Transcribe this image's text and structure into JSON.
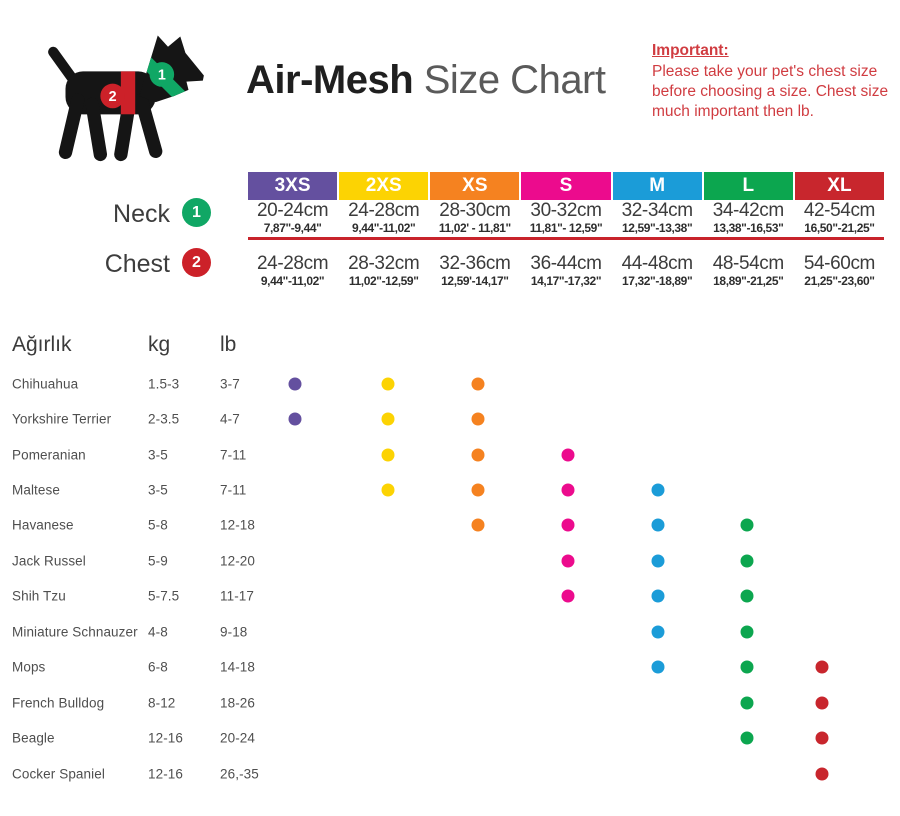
{
  "title": {
    "brand": "Air-Mesh",
    "rest": " Size Chart"
  },
  "important": {
    "heading": "Important:",
    "body": "Please take your pet's chest size before choosing a size. Chest size much important then lb."
  },
  "measure": {
    "neck_label": "Neck",
    "neck_marker": "1",
    "chest_label": "Chest",
    "chest_marker": "2"
  },
  "palette": {
    "3XS": "#64509f",
    "2XS": "#fcd303",
    "XS": "#f58220",
    "S": "#ec0b8d",
    "M": "#1b9cd8",
    "L": "#0ca64f",
    "XL": "#c8262d",
    "marker_green": "#10a765",
    "marker_red": "#cc2129",
    "accent_red_line": "#c8232b",
    "important_text": "#d03c41",
    "dog_black": "#151515"
  },
  "sizes": [
    {
      "label": "3XS",
      "neck_cm": "20-24cm",
      "neck_in": "7,87\"-9,44\"",
      "chest_cm": "24-28cm",
      "chest_in": "9,44\"-11,02\""
    },
    {
      "label": "2XS",
      "neck_cm": "24-28cm",
      "neck_in": "9,44\"-11,02\"",
      "chest_cm": "28-32cm",
      "chest_in": "11,02\"-12,59\""
    },
    {
      "label": "XS",
      "neck_cm": "28-30cm",
      "neck_in": "11,02' - 11,81\"",
      "chest_cm": "32-36cm",
      "chest_in": "12,59'-14,17\""
    },
    {
      "label": "S",
      "neck_cm": "30-32cm",
      "neck_in": "11,81\"- 12,59\"",
      "chest_cm": "36-44cm",
      "chest_in": "14,17\"-17,32\""
    },
    {
      "label": "M",
      "neck_cm": "32-34cm",
      "neck_in": "12,59\"-13,38\"",
      "chest_cm": "44-48cm",
      "chest_in": "17,32\"-18,89\""
    },
    {
      "label": "L",
      "neck_cm": "34-42cm",
      "neck_in": "13,38\"-16,53\"",
      "chest_cm": "48-54cm",
      "chest_in": "18,89\"-21,25\""
    },
    {
      "label": "XL",
      "neck_cm": "42-54cm",
      "neck_in": "16,50\"-21,25\"",
      "chest_cm": "54-60cm",
      "chest_in": "21,25\"-23,60\""
    }
  ],
  "breed_table": {
    "headers": {
      "breed": "Ağırlık",
      "kg": "kg",
      "lb": "lb"
    },
    "breeds": [
      {
        "name": "Chihuahua",
        "kg": "1.5-3",
        "lb": "3-7",
        "sizes": [
          "3XS",
          "2XS",
          "XS"
        ]
      },
      {
        "name": "Yorkshire Terrier",
        "kg": "2-3.5",
        "lb": "4-7",
        "sizes": [
          "3XS",
          "2XS",
          "XS"
        ]
      },
      {
        "name": "Pomeranian",
        "kg": "3-5",
        "lb": "7-11",
        "sizes": [
          "2XS",
          "XS",
          "S"
        ]
      },
      {
        "name": "Maltese",
        "kg": "3-5",
        "lb": "7-11",
        "sizes": [
          "2XS",
          "XS",
          "S",
          "M"
        ]
      },
      {
        "name": "Havanese",
        "kg": "5-8",
        "lb": "12-18",
        "sizes": [
          "XS",
          "S",
          "M",
          "L"
        ]
      },
      {
        "name": "Jack Russel",
        "kg": "5-9",
        "lb": "12-20",
        "sizes": [
          "S",
          "M",
          "L"
        ]
      },
      {
        "name": "Shih Tzu",
        "kg": "5-7.5",
        "lb": "11-17",
        "sizes": [
          "S",
          "M",
          "L"
        ]
      },
      {
        "name": "Miniature Schnauzer",
        "kg": "4-8",
        "lb": "9-18",
        "sizes": [
          "M",
          "L"
        ]
      },
      {
        "name": "Mops",
        "kg": "6-8",
        "lb": "14-18",
        "sizes": [
          "M",
          "L",
          "XL"
        ]
      },
      {
        "name": "French Bulldog",
        "kg": "8-12",
        "lb": "18-26",
        "sizes": [
          "L",
          "XL"
        ]
      },
      {
        "name": "Beagle",
        "kg": "12-16",
        "lb": "20-24",
        "sizes": [
          "L",
          "XL"
        ]
      },
      {
        "name": "Cocker Spaniel",
        "kg": "12-16",
        "lb": "26,-35",
        "sizes": [
          "XL"
        ]
      }
    ]
  },
  "chart_data": {
    "type": "table",
    "title": "Air-Mesh Size Chart",
    "size_columns": [
      "3XS",
      "2XS",
      "XS",
      "S",
      "M",
      "L",
      "XL"
    ],
    "neck_cm": [
      "20-24",
      "24-28",
      "28-30",
      "30-32",
      "32-34",
      "34-42",
      "42-54"
    ],
    "neck_in": [
      "7,87-9,44",
      "9,44-11,02",
      "11,02-11,81",
      "11,81-12,59",
      "12,59-13,38",
      "13,38-16,53",
      "16,50-21,25"
    ],
    "chest_cm": [
      "24-28",
      "28-32",
      "32-36",
      "36-44",
      "44-48",
      "48-54",
      "54-60"
    ],
    "chest_in": [
      "9,44-11,02",
      "11,02-12,59",
      "12,59-14,17",
      "14,17-17,32",
      "17,32-18,89",
      "18,89-21,25",
      "21,25-23,60"
    ],
    "breed_fit_matrix": {
      "Chihuahua": [
        "3XS",
        "2XS",
        "XS"
      ],
      "Yorkshire Terrier": [
        "3XS",
        "2XS",
        "XS"
      ],
      "Pomeranian": [
        "2XS",
        "XS",
        "S"
      ],
      "Maltese": [
        "2XS",
        "XS",
        "S",
        "M"
      ],
      "Havanese": [
        "XS",
        "S",
        "M",
        "L"
      ],
      "Jack Russel": [
        "S",
        "M",
        "L"
      ],
      "Shih Tzu": [
        "S",
        "M",
        "L"
      ],
      "Miniature Schnauzer": [
        "M",
        "L"
      ],
      "Mops": [
        "M",
        "L",
        "XL"
      ],
      "French Bulldog": [
        "L",
        "XL"
      ],
      "Beagle": [
        "L",
        "XL"
      ],
      "Cocker Spaniel": [
        "XL"
      ]
    }
  }
}
